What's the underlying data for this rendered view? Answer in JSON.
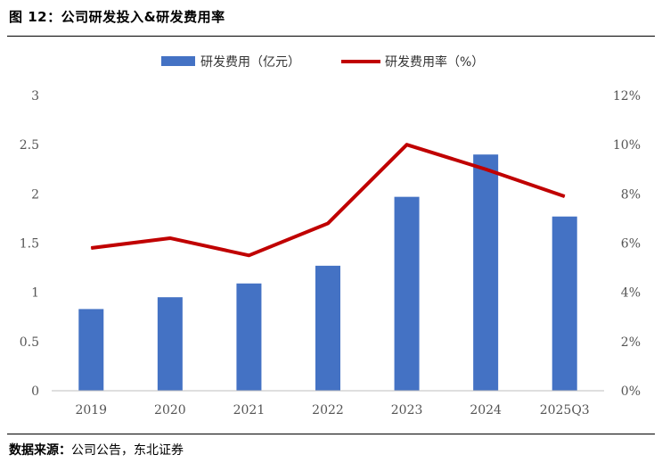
{
  "figure": {
    "title": "图 12：公司研发投入&研发费用率",
    "source_label": "数据来源：",
    "source_text": "公司公告，东北证券"
  },
  "chart_data": {
    "type": "bar",
    "categories": [
      "2019",
      "2020",
      "2021",
      "2022",
      "2023",
      "2024",
      "2025Q3"
    ],
    "series": [
      {
        "name": "研发费用（亿元）",
        "type": "bar",
        "axis": "left",
        "color": "#4472C4",
        "values": [
          0.83,
          0.95,
          1.09,
          1.27,
          1.97,
          2.4,
          1.77
        ]
      },
      {
        "name": "研发费用率（%）",
        "type": "line",
        "axis": "right",
        "color": "#C00000",
        "values": [
          5.8,
          6.2,
          5.5,
          6.8,
          10.0,
          9.0,
          7.9
        ]
      }
    ],
    "ylim_left": [
      0,
      3
    ],
    "yticks_left": [
      "0",
      "0.5",
      "1",
      "1.5",
      "2",
      "2.5",
      "3"
    ],
    "ylim_right": [
      0,
      12
    ],
    "yticks_right": [
      "0%",
      "2%",
      "4%",
      "6%",
      "8%",
      "10%",
      "12%"
    ],
    "legend_position": "top-center",
    "grid": false
  }
}
